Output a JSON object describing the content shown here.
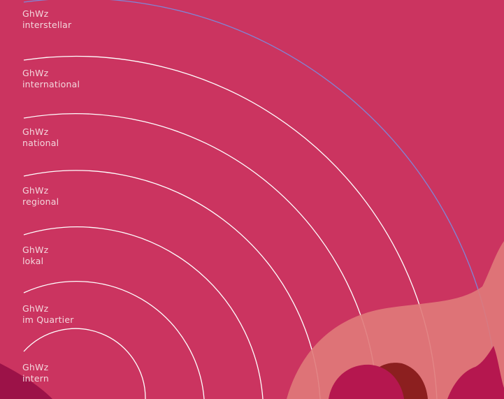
{
  "colors": {
    "background": "#cb3460",
    "ring": "#ffffff",
    "outer_ring": "#7f86d6",
    "hill_light": "#e07a7a",
    "hill_mid": "#b5174f",
    "hill_dark": "#8c1f1f",
    "corner": "#9c1248"
  },
  "rings": [
    {
      "code": "GhWz",
      "scope": "interstellar"
    },
    {
      "code": "GhWz",
      "scope": "international"
    },
    {
      "code": "GhWz",
      "scope": "national"
    },
    {
      "code": "GhWz",
      "scope": "regional"
    },
    {
      "code": "GhWz",
      "scope": "lokal"
    },
    {
      "code": "GhWz",
      "scope": "im Quartier"
    },
    {
      "code": "GhWz",
      "scope": "intern"
    }
  ]
}
